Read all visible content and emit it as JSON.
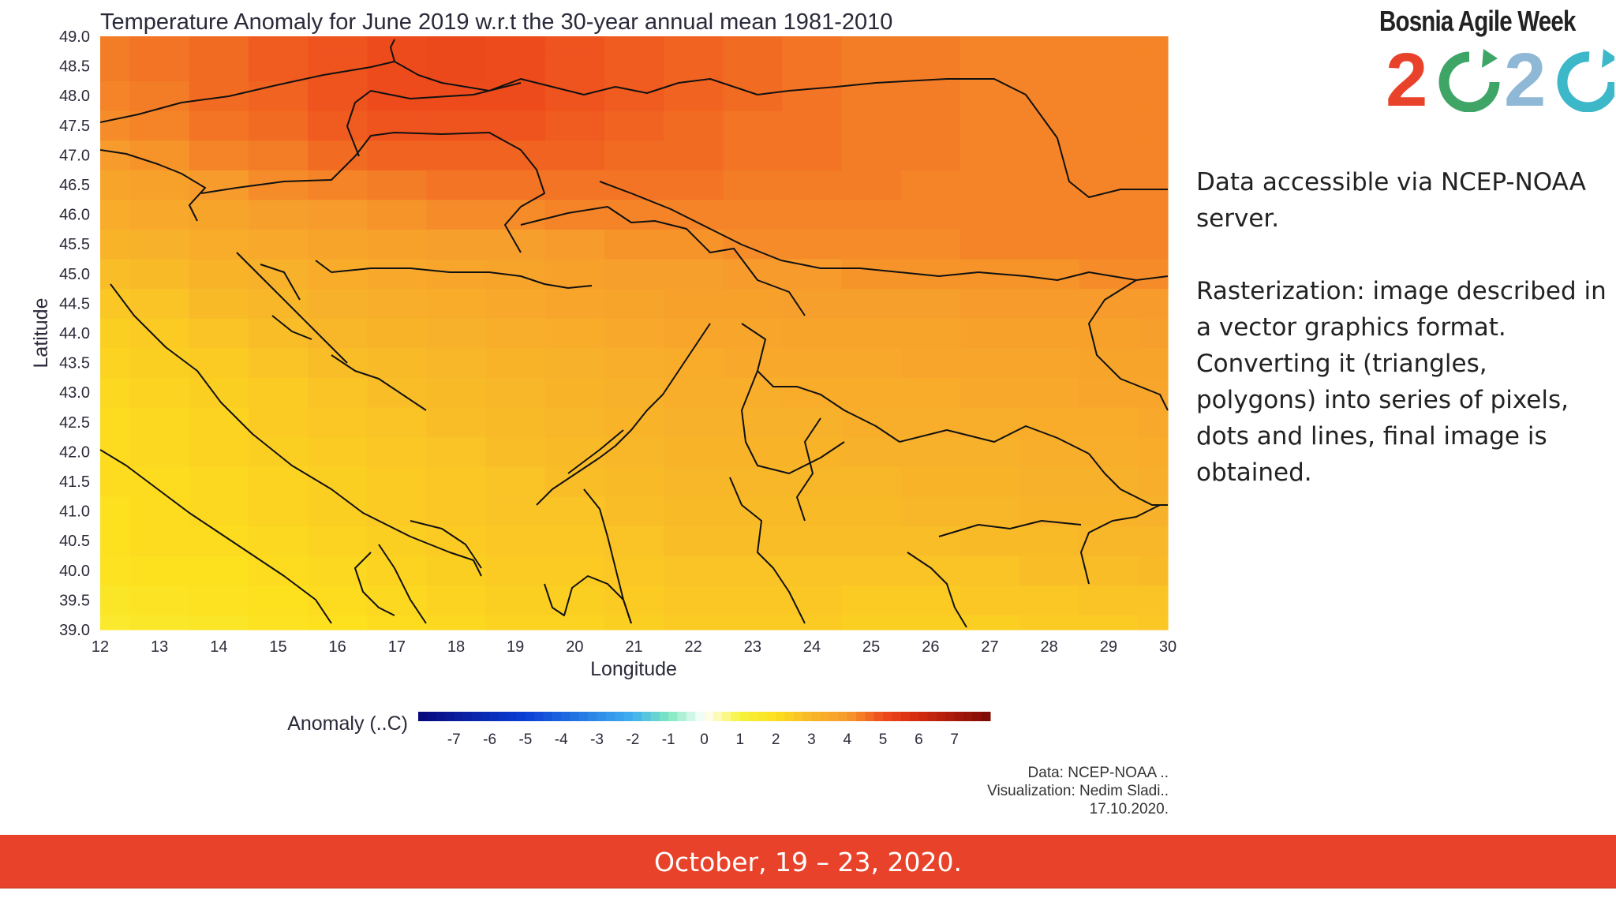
{
  "chart_data": {
    "type": "heatmap",
    "title": "Temperature Anomaly for June 2019 w.r.t the 30-year annual mean 1981-2010",
    "xlabel": "Longitude",
    "ylabel": "Latitude",
    "xlim": [
      12,
      30
    ],
    "ylim": [
      39.0,
      49.0
    ],
    "x_ticks": [
      "12",
      "13",
      "14",
      "15",
      "16",
      "17",
      "18",
      "19",
      "20",
      "21",
      "22",
      "23",
      "24",
      "25",
      "26",
      "27",
      "28",
      "29",
      "30"
    ],
    "y_ticks": [
      "39.0",
      "39.5",
      "40.0",
      "40.5",
      "41.0",
      "41.5",
      "42.0",
      "42.5",
      "43.0",
      "43.5",
      "44.0",
      "44.5",
      "45.0",
      "45.5",
      "46.0",
      "46.5",
      "47.0",
      "47.5",
      "48.0",
      "48.5",
      "49.0"
    ],
    "colorbar": {
      "label": "Anomaly (..C)",
      "range": [
        -8,
        8
      ],
      "ticks": [
        "-7",
        "-6",
        "-5",
        "-4",
        "-3",
        "-2",
        "-1",
        "0",
        "1",
        "2",
        "3",
        "4",
        "5",
        "6",
        "7"
      ]
    },
    "colors": {
      "neg8": "#08087a",
      "neg5": "#0a3fd6",
      "neg2": "#3fb0f0",
      "neg1": "#7ee8c0",
      "zero": "#ffffff",
      "pos1": "#f6f23c",
      "pos2": "#fde01e",
      "pos3": "#f8b629",
      "pos4": "#f79c2c",
      "pos5": "#ee4b1c",
      "pos6": "#d42a10",
      "pos8": "#7a0a05"
    },
    "anomaly_grid_note_free": true,
    "lat_centers": [
      39.0,
      39.5,
      40.0,
      40.5,
      41.0,
      41.5,
      42.0,
      42.5,
      43.0,
      43.5,
      44.0,
      44.5,
      45.0,
      45.5,
      46.0,
      46.5,
      47.0,
      47.5,
      48.0,
      48.5,
      49.0
    ],
    "lon_centers": [
      12,
      13,
      14,
      15,
      16,
      17,
      18,
      19,
      20,
      21,
      22,
      23,
      24,
      25,
      26,
      27,
      28,
      29,
      30
    ],
    "values": [
      [
        1.5,
        1.6,
        1.7,
        1.9,
        2.0,
        2.1,
        2.2,
        2.3,
        2.3,
        2.4,
        2.5,
        2.5,
        2.5,
        2.4,
        2.4,
        2.4,
        2.5,
        2.5,
        2.6
      ],
      [
        1.7,
        1.8,
        1.9,
        2.0,
        2.1,
        2.2,
        2.3,
        2.4,
        2.4,
        2.5,
        2.6,
        2.6,
        2.6,
        2.5,
        2.5,
        2.6,
        2.6,
        2.7,
        2.7
      ],
      [
        1.9,
        2.0,
        2.0,
        2.1,
        2.2,
        2.3,
        2.4,
        2.5,
        2.5,
        2.6,
        2.7,
        2.7,
        2.7,
        2.7,
        2.7,
        2.7,
        2.8,
        2.8,
        2.9
      ],
      [
        2.0,
        2.1,
        2.1,
        2.2,
        2.3,
        2.4,
        2.5,
        2.6,
        2.6,
        2.7,
        2.8,
        2.8,
        2.8,
        2.8,
        2.8,
        2.9,
        2.9,
        3.0,
        3.0
      ],
      [
        2.0,
        2.1,
        2.2,
        2.3,
        2.4,
        2.5,
        2.6,
        2.7,
        2.7,
        2.8,
        2.9,
        2.9,
        2.9,
        2.9,
        3.0,
        3.0,
        3.1,
        3.1,
        3.2
      ],
      [
        2.1,
        2.1,
        2.2,
        2.3,
        2.4,
        2.5,
        2.6,
        2.7,
        2.8,
        2.9,
        3.0,
        3.0,
        3.0,
        3.0,
        3.1,
        3.1,
        3.2,
        3.2,
        3.3
      ],
      [
        2.1,
        2.2,
        2.3,
        2.4,
        2.5,
        2.6,
        2.7,
        2.8,
        2.9,
        3.0,
        3.1,
        3.1,
        3.1,
        3.2,
        3.2,
        3.2,
        3.3,
        3.3,
        3.4
      ],
      [
        2.1,
        2.2,
        2.3,
        2.5,
        2.6,
        2.7,
        2.8,
        2.9,
        3.0,
        3.1,
        3.2,
        3.2,
        3.2,
        3.3,
        3.3,
        3.3,
        3.4,
        3.4,
        3.5
      ],
      [
        2.2,
        2.3,
        2.4,
        2.5,
        2.7,
        2.8,
        2.9,
        3.0,
        3.1,
        3.2,
        3.3,
        3.3,
        3.4,
        3.4,
        3.4,
        3.5,
        3.5,
        3.6,
        3.6
      ],
      [
        2.3,
        2.4,
        2.5,
        2.7,
        2.8,
        2.9,
        3.0,
        3.1,
        3.2,
        3.3,
        3.4,
        3.5,
        3.5,
        3.5,
        3.6,
        3.6,
        3.6,
        3.7,
        3.7
      ],
      [
        2.4,
        2.5,
        2.7,
        2.8,
        3.0,
        3.1,
        3.2,
        3.3,
        3.4,
        3.5,
        3.6,
        3.6,
        3.7,
        3.7,
        3.7,
        3.8,
        3.8,
        3.8,
        3.9
      ],
      [
        2.6,
        2.7,
        2.9,
        3.0,
        3.2,
        3.3,
        3.4,
        3.5,
        3.6,
        3.7,
        3.8,
        3.8,
        3.9,
        3.9,
        3.9,
        4.0,
        4.0,
        4.0,
        4.0
      ],
      [
        2.8,
        2.9,
        3.1,
        3.2,
        3.4,
        3.5,
        3.6,
        3.7,
        3.8,
        3.9,
        3.9,
        4.0,
        4.0,
        4.1,
        4.1,
        4.1,
        4.1,
        4.2,
        4.2
      ],
      [
        3.1,
        3.2,
        3.4,
        3.5,
        3.7,
        3.8,
        3.9,
        3.9,
        4.0,
        4.1,
        4.1,
        4.2,
        4.2,
        4.2,
        4.2,
        4.3,
        4.3,
        4.3,
        4.3
      ],
      [
        3.4,
        3.5,
        3.7,
        3.9,
        4.0,
        4.1,
        4.2,
        4.2,
        4.3,
        4.3,
        4.3,
        4.3,
        4.3,
        4.3,
        4.3,
        4.3,
        4.3,
        4.3,
        4.3
      ],
      [
        3.7,
        3.8,
        4.0,
        4.2,
        4.3,
        4.4,
        4.5,
        4.5,
        4.5,
        4.5,
        4.5,
        4.4,
        4.4,
        4.4,
        4.3,
        4.3,
        4.3,
        4.3,
        4.3
      ],
      [
        4.0,
        4.1,
        4.3,
        4.4,
        4.6,
        4.7,
        4.7,
        4.7,
        4.7,
        4.6,
        4.6,
        4.5,
        4.5,
        4.4,
        4.4,
        4.3,
        4.3,
        4.3,
        4.3
      ],
      [
        4.2,
        4.3,
        4.5,
        4.6,
        4.8,
        4.9,
        4.9,
        4.9,
        4.8,
        4.7,
        4.6,
        4.5,
        4.5,
        4.4,
        4.4,
        4.3,
        4.3,
        4.3,
        4.3
      ],
      [
        4.3,
        4.4,
        4.6,
        4.7,
        4.9,
        5.0,
        5.0,
        5.0,
        4.9,
        4.8,
        4.7,
        4.6,
        4.5,
        4.4,
        4.4,
        4.3,
        4.3,
        4.3,
        4.3
      ],
      [
        4.4,
        4.5,
        4.6,
        4.8,
        4.9,
        5.0,
        5.1,
        5.0,
        4.9,
        4.8,
        4.7,
        4.6,
        4.5,
        4.4,
        4.4,
        4.3,
        4.3,
        4.3,
        4.3
      ],
      [
        4.4,
        4.5,
        4.6,
        4.8,
        4.9,
        5.0,
        5.1,
        5.0,
        4.9,
        4.8,
        4.7,
        4.6,
        4.5,
        4.4,
        4.4,
        4.3,
        4.3,
        4.3,
        4.3
      ]
    ],
    "grid": false,
    "legend_placement": "bottom-center"
  },
  "credits": {
    "line1": "Data: NCEP-NOAA ..",
    "line2": "Visualization: Nedim Sladi..",
    "line3": "17.10.2020."
  },
  "logo": {
    "title": "Bosnia Agile Week",
    "year_digits": [
      "2",
      "0",
      "2",
      "0"
    ],
    "colors": [
      "#e8432a",
      "#3fa567",
      "#8fb8d6",
      "#3cb8c9"
    ]
  },
  "side_text": {
    "p1": "Data accessible via NCEP-NOAA server.",
    "p2": "Rasterization: image described in a vector graphics format. Converting it (triangles, polygons) into series of pixels, dots and lines, final image is obtained."
  },
  "footer": {
    "dates": "October, 19 – 23, 2020."
  }
}
